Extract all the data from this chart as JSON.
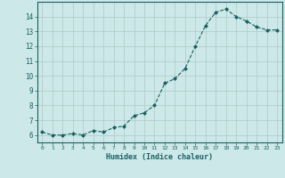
{
  "x": [
    0,
    1,
    2,
    3,
    4,
    5,
    6,
    7,
    8,
    9,
    10,
    11,
    12,
    13,
    14,
    15,
    16,
    17,
    18,
    19,
    20,
    21,
    22,
    23
  ],
  "y": [
    6.2,
    6.0,
    6.0,
    6.1,
    6.0,
    6.3,
    6.2,
    6.5,
    6.6,
    7.3,
    7.5,
    8.0,
    9.5,
    9.8,
    10.5,
    12.0,
    13.4,
    14.3,
    14.5,
    14.0,
    13.7,
    13.3,
    13.1,
    13.1
  ],
  "xlabel": "Humidex (Indice chaleur)",
  "xlim": [
    -0.5,
    23.5
  ],
  "ylim": [
    5.5,
    15.0
  ],
  "bg_color": "#cce8e8",
  "line_color": "#1a6060",
  "grid_color": "#b0c8c8",
  "tick_label_color": "#1a6060",
  "xlabel_color": "#1a6060"
}
